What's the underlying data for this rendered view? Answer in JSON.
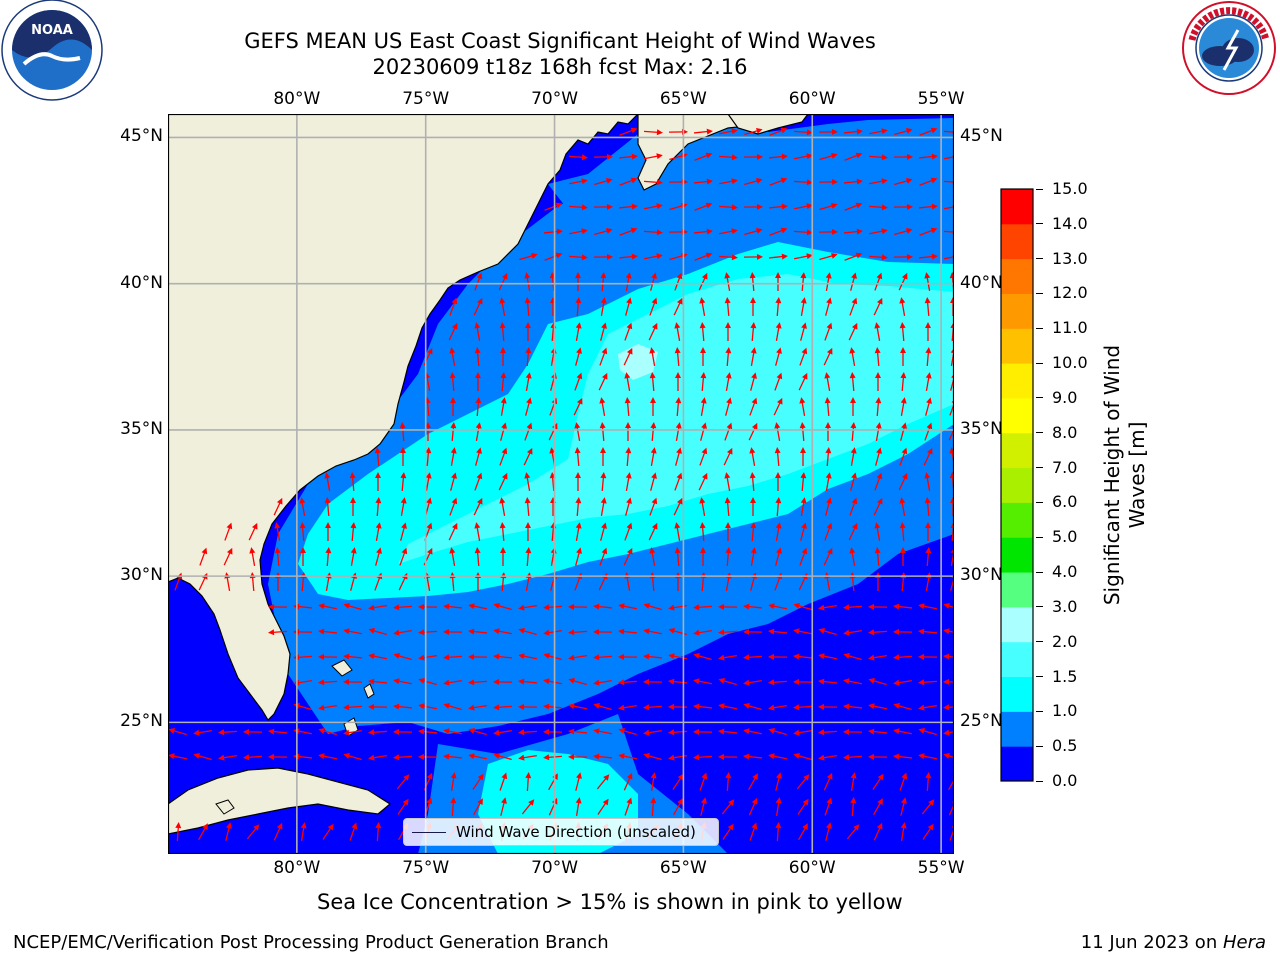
{
  "title": {
    "line1": "GEFS MEAN US East Coast Significant Height of Wind Waves",
    "line2": "20230609 t18z 168h fcst   Max: 2.16"
  },
  "logos": {
    "left": {
      "icon": "noaa-logo-icon",
      "text": "NOAA",
      "ring_text": "NATIONAL OCEANIC AND ATMOSPHERIC ADMINISTRATION · U.S. DEPARTMENT OF COMMERCE"
    },
    "right": {
      "icon": "nws-logo-icon",
      "ring_text": "NATIONAL WEATHER SERVICE"
    }
  },
  "map": {
    "lon_ticks": [
      "80°W",
      "75°W",
      "70°W",
      "65°W",
      "60°W",
      "55°W"
    ],
    "lat_ticks": [
      "45°N",
      "40°N",
      "35°N",
      "30°N",
      "25°N"
    ],
    "lon_values": [
      -80,
      -75,
      -70,
      -65,
      -60,
      -55
    ],
    "lat_values": [
      45,
      40,
      35,
      30,
      25
    ],
    "extent": {
      "lon_min": -85,
      "lon_max": -54.5,
      "lat_min": 20.5,
      "lat_max": 45.8
    },
    "land_color": "#efefdc",
    "arrow_color": "#ff0000",
    "grid_color": "#b0b0b0"
  },
  "legend": {
    "label": "Wind Wave Direction (unscaled)"
  },
  "colorbar": {
    "label_line1": "Significant Height of Wind",
    "label_line2": "Waves [m]",
    "levels": [
      "0.0",
      "0.5",
      "1.0",
      "1.5",
      "2.0",
      "3.0",
      "4.0",
      "5.0",
      "6.0",
      "7.0",
      "8.0",
      "9.0",
      "10.0",
      "11.0",
      "12.0",
      "13.0",
      "14.0",
      "15.0"
    ],
    "colors": [
      "#0000ff",
      "#0080ff",
      "#00ffff",
      "#48ffff",
      "#aaffff",
      "#55ff80",
      "#00e600",
      "#55ee00",
      "#aaee00",
      "#d0f000",
      "#ffff00",
      "#ffee00",
      "#ffc000",
      "#ff9900",
      "#ff7700",
      "#ff4400",
      "#ff0000"
    ]
  },
  "caption": "Sea Ice Concentration > 15% is shown in pink to yellow",
  "footer": {
    "left": "NCEP/EMC/Verification Post Processing Product Generation Branch",
    "right_date": "11 Jun 2023 on ",
    "right_machine": "Hera"
  }
}
